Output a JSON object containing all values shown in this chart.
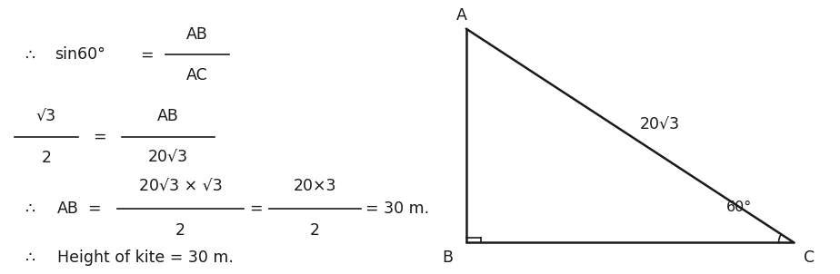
{
  "bg_color": "#ffffff",
  "text_color": "#1a1a1a",
  "line_color": "#1a1a1a",
  "triangle": {
    "A": [
      0.555,
      0.895
    ],
    "B": [
      0.555,
      0.115
    ],
    "C": [
      0.945,
      0.115
    ]
  },
  "figsize": [
    9.24,
    3.02
  ],
  "dpi": 100,
  "fs": 12.5
}
